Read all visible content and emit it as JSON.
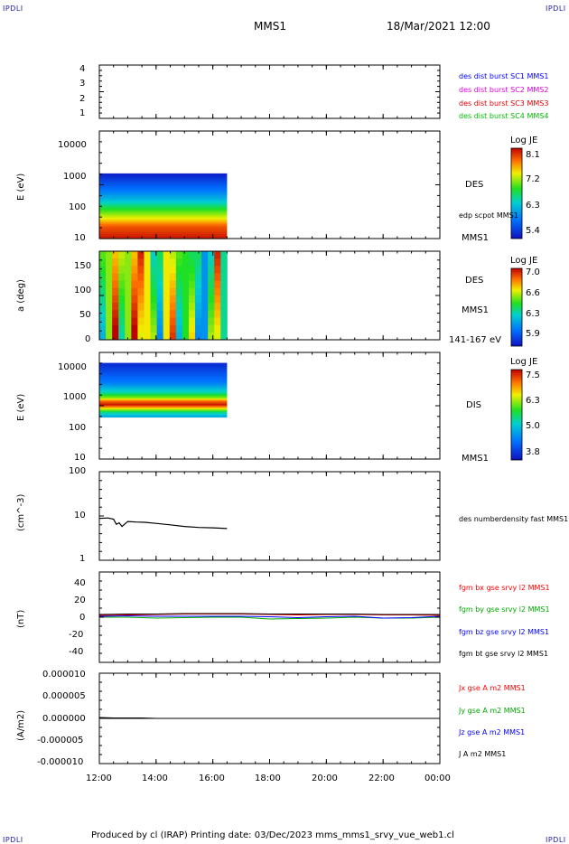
{
  "header": {
    "left_logo": "IPDLI",
    "right_logo": "IPDLI",
    "spacecraft": "MMS1",
    "datetime": "18/Mar/2021 12:00"
  },
  "footer": {
    "text": "Produced by cl (IRAP)   Printing date: 03/Dec/2023   mms_mms1_srvy_vue_web1.cl",
    "left_logo": "IPDLI",
    "right_logo": "IPDLI"
  },
  "colors": {
    "c1": "#0000ff",
    "c2": "#dd00dd",
    "c3": "#dd0000",
    "c4": "#00bb00",
    "bx": "#ff0000",
    "by": "#00aa00",
    "bz": "#0000ff",
    "bt": "#000000"
  },
  "x_axis": {
    "ticks": [
      "12:00",
      "14:00",
      "16:00",
      "18:00",
      "20:00",
      "22:00",
      "00:00"
    ],
    "range_hours": [
      12,
      24
    ]
  },
  "panels": {
    "p1": {
      "yticks": [
        "4",
        "3",
        "2",
        "1"
      ],
      "legend": [
        "des dist burst SC1 MMS1",
        "des dist burst SC2 MMS2",
        "des dist burst SC3 MMS3",
        "des dist burst SC4 MMS4"
      ]
    },
    "p2": {
      "ylabel": "E (eV)",
      "yticks": [
        "10000",
        "1000",
        "100",
        "10"
      ],
      "right_label": "DES",
      "right_sub": "edp scpot MMS1",
      "bottom_right": "MMS1",
      "colorbar": {
        "title": "Log JE",
        "ticks": [
          "8.1",
          "7.2",
          "6.3",
          "5.4"
        ]
      }
    },
    "p3": {
      "ylabel": "a (deg)",
      "yticks": [
        "150",
        "100",
        "50",
        "0"
      ],
      "right_label": "DES",
      "right_sub": "MMS1",
      "bottom_right": "141-167 eV",
      "colorbar": {
        "title": "Log JE",
        "ticks": [
          "7.0",
          "6.6",
          "6.3",
          "5.9"
        ]
      }
    },
    "p4": {
      "ylabel": "E (eV)",
      "yticks": [
        "10000",
        "1000",
        "100",
        "10"
      ],
      "right_label": "DIS",
      "bottom_right": "MMS1",
      "colorbar": {
        "title": "Log JE",
        "ticks": [
          "7.5",
          "6.3",
          "5.0",
          "3.8"
        ]
      }
    },
    "p5": {
      "ylabel": "(cm^-3)",
      "yticks": [
        "100",
        "10",
        "1"
      ],
      "legend": "des numberdensity fast MMS1"
    },
    "p6": {
      "ylabel": "(nT)",
      "yticks": [
        "40",
        "20",
        "0",
        "-20",
        "-40"
      ],
      "legend": [
        "fgm bx gse srvy l2 MMS1",
        "fgm by gse srvy l2 MMS1",
        "fgm bz gse srvy l2 MMS1",
        "fgm bt gse srvy l2 MMS1"
      ]
    },
    "p7": {
      "ylabel": "(A/m2)",
      "yticks": [
        "0.000010",
        "0.000005",
        "0.000000",
        "-0.000005",
        "-0.000010"
      ],
      "legend": [
        "Jx gse A m2 MMS1",
        "Jy gse A m2 MMS1",
        "Jz gse A m2 MMS1",
        "J A m2 MMS1"
      ]
    }
  },
  "chart_data": [
    {
      "type": "heatmap",
      "title": "",
      "xlabel": "",
      "ylabel": "E (eV)",
      "x_range_hours": [
        12,
        24
      ],
      "data_coverage_hours": [
        12.0,
        16.5
      ],
      "ylim": [
        10,
        20000
      ],
      "log_y": true,
      "energy_cutoff_ev": 1000,
      "colorbar_range": [
        5.4,
        8.1
      ],
      "profile_log_je": [
        {
          "energy_ev": 12,
          "value": 8.0
        },
        {
          "energy_ev": 25,
          "value": 7.8
        },
        {
          "energy_ev": 40,
          "value": 7.4
        },
        {
          "energy_ev": 80,
          "value": 6.9
        },
        {
          "energy_ev": 150,
          "value": 6.4
        },
        {
          "energy_ev": 300,
          "value": 6.0
        },
        {
          "energy_ev": 600,
          "value": 5.7
        },
        {
          "energy_ev": 950,
          "value": 5.5
        }
      ]
    },
    {
      "type": "heatmap",
      "title": "",
      "xlabel": "",
      "ylabel": "a (deg)",
      "x_range_hours": [
        12,
        24
      ],
      "data_coverage_hours": [
        12.0,
        16.5
      ],
      "ylim": [
        0,
        180
      ],
      "colorbar_range": [
        5.9,
        7.0
      ],
      "column_levels_log_je": [
        6.4,
        6.6,
        6.9,
        6.5,
        6.6,
        6.9,
        6.8,
        6.7,
        6.5,
        6.3,
        6.7,
        6.8,
        6.4,
        6.5,
        6.6,
        6.3,
        6.2,
        6.5,
        6.8,
        6.4
      ]
    },
    {
      "type": "heatmap",
      "title": "",
      "xlabel": "",
      "ylabel": "E (eV)",
      "x_range_hours": [
        12,
        24
      ],
      "data_coverage_hours": [
        12.0,
        16.5
      ],
      "ylim": [
        10,
        20000
      ],
      "log_y": true,
      "energy_range_ev": [
        200,
        9500
      ],
      "colorbar_range": [
        3.8,
        7.5
      ],
      "profile_log_je": [
        {
          "energy_ev": 220,
          "value": 5.0
        },
        {
          "energy_ev": 300,
          "value": 5.6
        },
        {
          "energy_ev": 400,
          "value": 6.7
        },
        {
          "energy_ev": 500,
          "value": 7.4
        },
        {
          "energy_ev": 650,
          "value": 7.0
        },
        {
          "energy_ev": 800,
          "value": 6.2
        },
        {
          "energy_ev": 1200,
          "value": 5.4
        },
        {
          "energy_ev": 2500,
          "value": 4.6
        },
        {
          "energy_ev": 6000,
          "value": 4.2
        },
        {
          "energy_ev": 9500,
          "value": 4.0
        }
      ]
    },
    {
      "type": "line",
      "title": "",
      "xlabel": "",
      "ylabel": "(cm^-3)",
      "ylim": [
        1,
        100
      ],
      "log_y": true,
      "series": [
        {
          "name": "des numberdensity fast MMS1",
          "x": [
            12.0,
            12.3,
            12.5,
            12.6,
            12.7,
            12.8,
            13.0,
            13.3,
            13.6,
            14.0,
            14.5,
            15.0,
            15.5,
            16.0,
            16.5
          ],
          "y": [
            8.8,
            9.0,
            8.5,
            6.5,
            7.0,
            5.8,
            7.5,
            7.3,
            7.2,
            6.8,
            6.3,
            5.8,
            5.5,
            5.4,
            5.2
          ]
        }
      ]
    },
    {
      "type": "line",
      "title": "",
      "xlabel": "",
      "ylabel": "(nT)",
      "ylim": [
        -50,
        50
      ],
      "series": [
        {
          "name": "fgm bx gse srvy l2 MMS1",
          "x": [
            12,
            13,
            14,
            15,
            16,
            17,
            18,
            19,
            20,
            21,
            22,
            23,
            24
          ],
          "y": [
            2,
            2.5,
            3,
            3.5,
            3.5,
            3.5,
            3,
            2.5,
            3,
            3,
            2.5,
            2.5,
            2
          ]
        },
        {
          "name": "fgm by gse srvy l2 MMS1",
          "x": [
            12,
            13,
            14,
            15,
            16,
            17,
            18,
            19,
            20,
            21,
            22,
            23,
            24
          ],
          "y": [
            0,
            0,
            -1,
            -0.5,
            0,
            0,
            -2,
            -1.5,
            -1,
            0,
            -1,
            -1,
            0
          ]
        },
        {
          "name": "fgm bz gse srvy l2 MMS1",
          "x": [
            12,
            13,
            14,
            15,
            16,
            17,
            18,
            19,
            20,
            21,
            22,
            23,
            24
          ],
          "y": [
            1,
            1.5,
            1,
            1,
            1,
            1,
            0.5,
            -0.5,
            0.5,
            1,
            -1,
            -0.5,
            1
          ]
        },
        {
          "name": "fgm bt gse srvy l2 MMS1",
          "x": [
            12,
            13,
            14,
            15,
            16,
            17,
            18,
            19,
            20,
            21,
            22,
            23,
            24
          ],
          "y": [
            3,
            3.5,
            3.5,
            4,
            4,
            4,
            3.5,
            3.5,
            3.5,
            3.5,
            3,
            3,
            3
          ]
        }
      ]
    },
    {
      "type": "line",
      "title": "",
      "xlabel": "",
      "ylabel": "(A/m2)",
      "ylim": [
        -1e-05,
        1e-05
      ],
      "series": [
        {
          "name": "J A m2 MMS1",
          "x": [
            12.0,
            12.5,
            13.0,
            13.5,
            14.0,
            16.5
          ],
          "y": [
            2e-07,
            1e-07,
            1e-07,
            1e-07,
            0.0,
            0.0
          ]
        }
      ]
    }
  ]
}
